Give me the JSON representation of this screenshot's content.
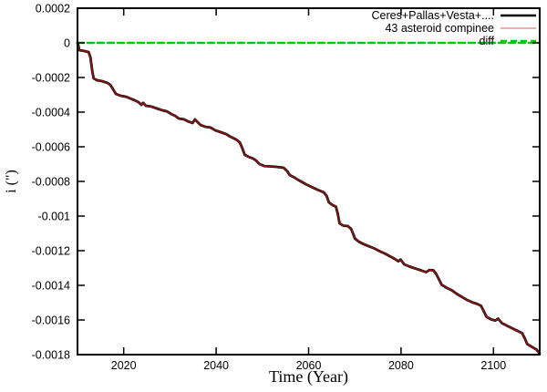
{
  "chart_data": {
    "type": "line",
    "title": "",
    "xlabel": "Time (Year)",
    "ylabel": "i (\")",
    "xlim": [
      2010,
      2110
    ],
    "ylim": [
      -0.0018,
      0.0002
    ],
    "grid": false,
    "legend_position": "top-right-inside",
    "background": "#ffffff",
    "axis_color": "#000000",
    "xticks": [
      {
        "v": 2020,
        "label": "2020"
      },
      {
        "v": 2040,
        "label": "2040"
      },
      {
        "v": 2060,
        "label": "2060"
      },
      {
        "v": 2080,
        "label": "2080"
      },
      {
        "v": 2100,
        "label": "2100"
      }
    ],
    "yticks": [
      {
        "v": 0.0002,
        "label": "0.0002"
      },
      {
        "v": 0,
        "label": "0"
      },
      {
        "v": -0.0002,
        "label": "-0.0002"
      },
      {
        "v": -0.0004,
        "label": "-0.0004"
      },
      {
        "v": -0.0006,
        "label": "-0.0006"
      },
      {
        "v": -0.0008,
        "label": "-0.0008"
      },
      {
        "v": -0.001,
        "label": "-0.001"
      },
      {
        "v": -0.0012,
        "label": "-0.0012"
      },
      {
        "v": -0.0014,
        "label": "-0.0014"
      },
      {
        "v": -0.0016,
        "label": "-0.0016"
      },
      {
        "v": -0.0018,
        "label": "-0.0018"
      }
    ],
    "series": [
      {
        "name": "Ceres+Pallas+Vesta+....",
        "stroke": "#000000",
        "width": 2.8,
        "dash": null,
        "points": "main",
        "legend": {
          "stroke": "#000000",
          "width": 2.6,
          "dash": null
        }
      },
      {
        "name": "43 asteroid compinee",
        "stroke": "#8c1616",
        "width": 1.6,
        "dash": null,
        "points": "main",
        "legend": {
          "stroke": "#e87c7c",
          "width": 1.2,
          "dash": null
        }
      },
      {
        "name": "diff",
        "stroke": "#00c800",
        "width": 2.4,
        "dash": "7 4",
        "points": "zero",
        "legend": {
          "stroke": "#00c800",
          "width": 2.4,
          "dash": "7 4"
        }
      }
    ],
    "points": {
      "zero": [
        [
          2010,
          0
        ],
        [
          2110,
          0
        ]
      ],
      "main": [
        [
          2010.0,
          0.0
        ],
        [
          2010.2,
          -1.6e-05
        ],
        [
          2010.4,
          -4.2e-05
        ],
        [
          2011.4,
          -4.7e-05
        ],
        [
          2012.4,
          -5.3e-05
        ],
        [
          2012.8,
          -8.4e-05
        ],
        [
          2013.2,
          -0.000163
        ],
        [
          2013.5,
          -0.000205
        ],
        [
          2014.2,
          -0.000216
        ],
        [
          2015.3,
          -0.000221
        ],
        [
          2016.5,
          -0.000232
        ],
        [
          2017.1,
          -0.000242
        ],
        [
          2017.7,
          -0.000268
        ],
        [
          2018.3,
          -0.000295
        ],
        [
          2019.3,
          -0.000305
        ],
        [
          2020.5,
          -0.000311
        ],
        [
          2021.4,
          -0.000321
        ],
        [
          2022.4,
          -0.000332
        ],
        [
          2023.2,
          -0.000342
        ],
        [
          2023.8,
          -0.000358
        ],
        [
          2024.2,
          -0.000347
        ],
        [
          2024.8,
          -0.000363
        ],
        [
          2026.0,
          -0.000368
        ],
        [
          2027.2,
          -0.000379
        ],
        [
          2028.3,
          -0.000389
        ],
        [
          2029.3,
          -0.000395
        ],
        [
          2030.3,
          -0.000411
        ],
        [
          2031.1,
          -0.000421
        ],
        [
          2031.9,
          -0.000437
        ],
        [
          2033.1,
          -0.000442
        ],
        [
          2033.9,
          -0.000453
        ],
        [
          2034.9,
          -0.000463
        ],
        [
          2035.4,
          -0.000442
        ],
        [
          2036.0,
          -0.000458
        ],
        [
          2036.6,
          -0.000474
        ],
        [
          2037.6,
          -0.000484
        ],
        [
          2038.8,
          -0.000489
        ],
        [
          2039.8,
          -0.000505
        ],
        [
          2041.0,
          -0.000516
        ],
        [
          2042.1,
          -0.000526
        ],
        [
          2043.1,
          -0.000542
        ],
        [
          2044.3,
          -0.000558
        ],
        [
          2045.1,
          -0.000574
        ],
        [
          2045.6,
          -0.000605
        ],
        [
          2046.2,
          -0.000647
        ],
        [
          2047.0,
          -0.000658
        ],
        [
          2048.0,
          -0.000668
        ],
        [
          2048.6,
          -0.000679
        ],
        [
          2049.4,
          -0.0007
        ],
        [
          2050.4,
          -0.000711
        ],
        [
          2051.6,
          -0.000713
        ],
        [
          2053.0,
          -0.000716
        ],
        [
          2054.6,
          -0.000721
        ],
        [
          2055.4,
          -0.000742
        ],
        [
          2055.9,
          -0.000763
        ],
        [
          2056.7,
          -0.000774
        ],
        [
          2058.1,
          -0.000797
        ],
        [
          2059.5,
          -0.000818
        ],
        [
          2060.9,
          -0.000835
        ],
        [
          2062.1,
          -0.00085
        ],
        [
          2063.3,
          -0.000863
        ],
        [
          2063.9,
          -0.000884
        ],
        [
          2064.4,
          -0.000921
        ],
        [
          2065.2,
          -0.000937
        ],
        [
          2065.9,
          -0.000945
        ],
        [
          2066.3,
          -0.000984
        ],
        [
          2066.7,
          -0.001042
        ],
        [
          2067.5,
          -0.001055
        ],
        [
          2068.5,
          -0.001058
        ],
        [
          2069.2,
          -0.001074
        ],
        [
          2069.6,
          -0.0011
        ],
        [
          2070.0,
          -0.001129
        ],
        [
          2070.8,
          -0.001147
        ],
        [
          2071.8,
          -0.001161
        ],
        [
          2073.0,
          -0.001174
        ],
        [
          2074.2,
          -0.001187
        ],
        [
          2075.4,
          -0.001203
        ],
        [
          2076.6,
          -0.001218
        ],
        [
          2077.6,
          -0.001232
        ],
        [
          2078.6,
          -0.001247
        ],
        [
          2079.4,
          -0.001261
        ],
        [
          2079.9,
          -0.001251
        ],
        [
          2080.7,
          -0.001279
        ],
        [
          2081.9,
          -0.001292
        ],
        [
          2083.1,
          -0.001303
        ],
        [
          2084.3,
          -0.001313
        ],
        [
          2085.4,
          -0.001324
        ],
        [
          2086.2,
          -0.001311
        ],
        [
          2087.0,
          -0.001313
        ],
        [
          2087.6,
          -0.001334
        ],
        [
          2088.2,
          -0.001366
        ],
        [
          2088.8,
          -0.001397
        ],
        [
          2089.8,
          -0.001413
        ],
        [
          2091.0,
          -0.001429
        ],
        [
          2092.1,
          -0.00145
        ],
        [
          2093.1,
          -0.001466
        ],
        [
          2094.1,
          -0.001482
        ],
        [
          2095.3,
          -0.001497
        ],
        [
          2096.5,
          -0.001508
        ],
        [
          2097.3,
          -0.001518
        ],
        [
          2097.9,
          -0.00155
        ],
        [
          2098.5,
          -0.001582
        ],
        [
          2099.5,
          -0.001597
        ],
        [
          2100.4,
          -0.001603
        ],
        [
          2101.0,
          -0.001592
        ],
        [
          2101.8,
          -0.001618
        ],
        [
          2103.0,
          -0.001634
        ],
        [
          2104.2,
          -0.00165
        ],
        [
          2105.4,
          -0.001666
        ],
        [
          2106.2,
          -0.001676
        ],
        [
          2106.8,
          -0.001708
        ],
        [
          2107.3,
          -0.001739
        ],
        [
          2108.3,
          -0.001755
        ],
        [
          2109.3,
          -0.001771
        ],
        [
          2110.0,
          -0.001795
        ]
      ]
    }
  }
}
